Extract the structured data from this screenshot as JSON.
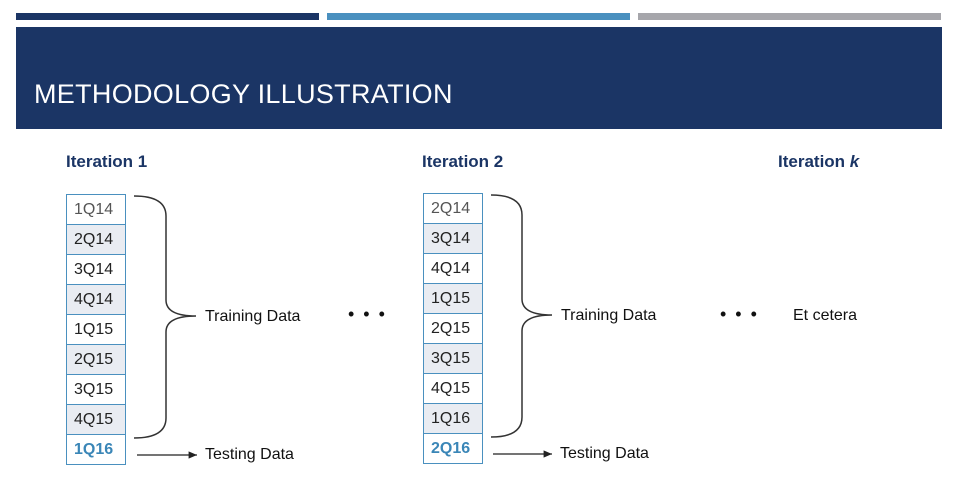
{
  "title": "METHODOLOGY ILLUSTRATION",
  "iterations": [
    {
      "title": "Iteration 1",
      "training": [
        "1Q14",
        "2Q14",
        "3Q14",
        "4Q14",
        "1Q15",
        "2Q15",
        "3Q15",
        "4Q15"
      ],
      "testing": "1Q16",
      "training_label": "Training Data",
      "testing_label": "Testing Data"
    },
    {
      "title": "Iteration 2",
      "training": [
        "2Q14",
        "3Q14",
        "4Q14",
        "1Q15",
        "2Q15",
        "3Q15",
        "4Q15",
        "1Q16"
      ],
      "testing": "2Q16",
      "training_label": "Training Data",
      "testing_label": "Testing Data"
    },
    {
      "title_prefix": "Iteration ",
      "title_var": "k",
      "text": "Et cetera"
    }
  ],
  "ellipsis": "• • •",
  "colors": {
    "navy": "#1b3565",
    "accent_blue": "#4a90bf",
    "gray": "#a6a6ab",
    "shade": "#e9ecf2"
  }
}
